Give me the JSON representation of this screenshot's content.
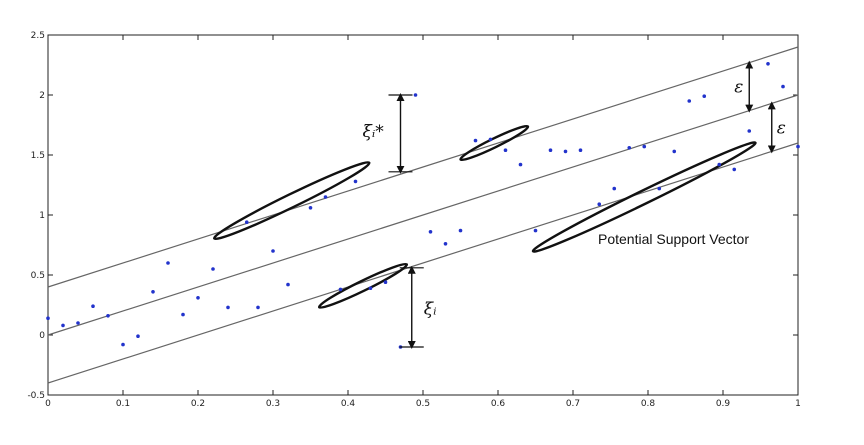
{
  "chart_data": {
    "type": "scatter",
    "title": "",
    "xlabel": "",
    "ylabel": "",
    "xlim": [
      0,
      1
    ],
    "ylim": [
      -0.5,
      2.5
    ],
    "x_ticks": [
      "0",
      "0.1",
      "0.2",
      "0.3",
      "0.4",
      "0.5",
      "0.6",
      "0.7",
      "0.8",
      "0.9",
      "1"
    ],
    "y_ticks": [
      "-0.5",
      "0",
      "0.5",
      "1",
      "1.5",
      "2",
      "2.5"
    ],
    "grid": false,
    "colors": {
      "points": "#2233cc",
      "lines": "#666666",
      "annotations": "#111111"
    },
    "regression_lines": [
      {
        "role": "upper",
        "intercept": 0.4,
        "slope": 2.0
      },
      {
        "role": "center",
        "intercept": 0.0,
        "slope": 2.0
      },
      {
        "role": "lower",
        "intercept": -0.4,
        "slope": 2.0
      }
    ],
    "points": [
      [
        0.0,
        0.14
      ],
      [
        0.02,
        0.08
      ],
      [
        0.04,
        0.1
      ],
      [
        0.06,
        0.24
      ],
      [
        0.08,
        0.16
      ],
      [
        0.1,
        -0.08
      ],
      [
        0.12,
        -0.01
      ],
      [
        0.14,
        0.36
      ],
      [
        0.16,
        0.6
      ],
      [
        0.18,
        0.17
      ],
      [
        0.2,
        0.31
      ],
      [
        0.22,
        0.55
      ],
      [
        0.24,
        0.23
      ],
      [
        0.265,
        0.94
      ],
      [
        0.28,
        0.23
      ],
      [
        0.3,
        0.7
      ],
      [
        0.32,
        0.42
      ],
      [
        0.35,
        1.06
      ],
      [
        0.37,
        1.15
      ],
      [
        0.39,
        0.38
      ],
      [
        0.41,
        1.28
      ],
      [
        0.43,
        0.39
      ],
      [
        0.45,
        0.44
      ],
      [
        0.47,
        -0.1
      ],
      [
        0.49,
        2.0
      ],
      [
        0.51,
        0.86
      ],
      [
        0.53,
        0.76
      ],
      [
        0.55,
        0.87
      ],
      [
        0.57,
        1.62
      ],
      [
        0.59,
        1.63
      ],
      [
        0.61,
        1.54
      ],
      [
        0.63,
        1.42
      ],
      [
        0.65,
        0.87
      ],
      [
        0.67,
        1.54
      ],
      [
        0.69,
        1.53
      ],
      [
        0.71,
        1.54
      ],
      [
        0.735,
        1.09
      ],
      [
        0.755,
        1.22
      ],
      [
        0.775,
        1.56
      ],
      [
        0.795,
        1.57
      ],
      [
        0.815,
        1.22
      ],
      [
        0.835,
        1.53
      ],
      [
        0.855,
        1.95
      ],
      [
        0.875,
        1.99
      ],
      [
        0.895,
        1.42
      ],
      [
        0.915,
        1.38
      ],
      [
        0.935,
        1.7
      ],
      [
        0.96,
        2.26
      ],
      [
        0.98,
        2.07
      ],
      [
        1.0,
        1.57
      ]
    ],
    "annotations": {
      "xi_star": {
        "text": "ξᵢ*",
        "x": 0.47,
        "y_from": 1.36,
        "y_to": 2.0
      },
      "xi": {
        "text": "ξᵢ",
        "x": 0.485,
        "y_from": -0.1,
        "y_to": 0.56
      },
      "epsilon_upper": {
        "text": "ε",
        "x": 0.935
      },
      "epsilon_lower": {
        "text": "ε",
        "x": 0.965
      },
      "support_vector_label": "Potential Support Vector"
    },
    "ellipses": [
      {
        "cx": 0.325,
        "cy": 1.12,
        "rx": 0.115,
        "ry": 0.12,
        "angle_deg": -26
      },
      {
        "cx": 0.595,
        "cy": 1.6,
        "rx": 0.05,
        "ry": 0.08,
        "angle_deg": -26
      },
      {
        "cx": 0.42,
        "cy": 0.41,
        "rx": 0.065,
        "ry": 0.09,
        "angle_deg": -26
      },
      {
        "cx": 0.795,
        "cy": 1.15,
        "rx": 0.165,
        "ry": 0.12,
        "angle_deg": -26
      }
    ]
  }
}
